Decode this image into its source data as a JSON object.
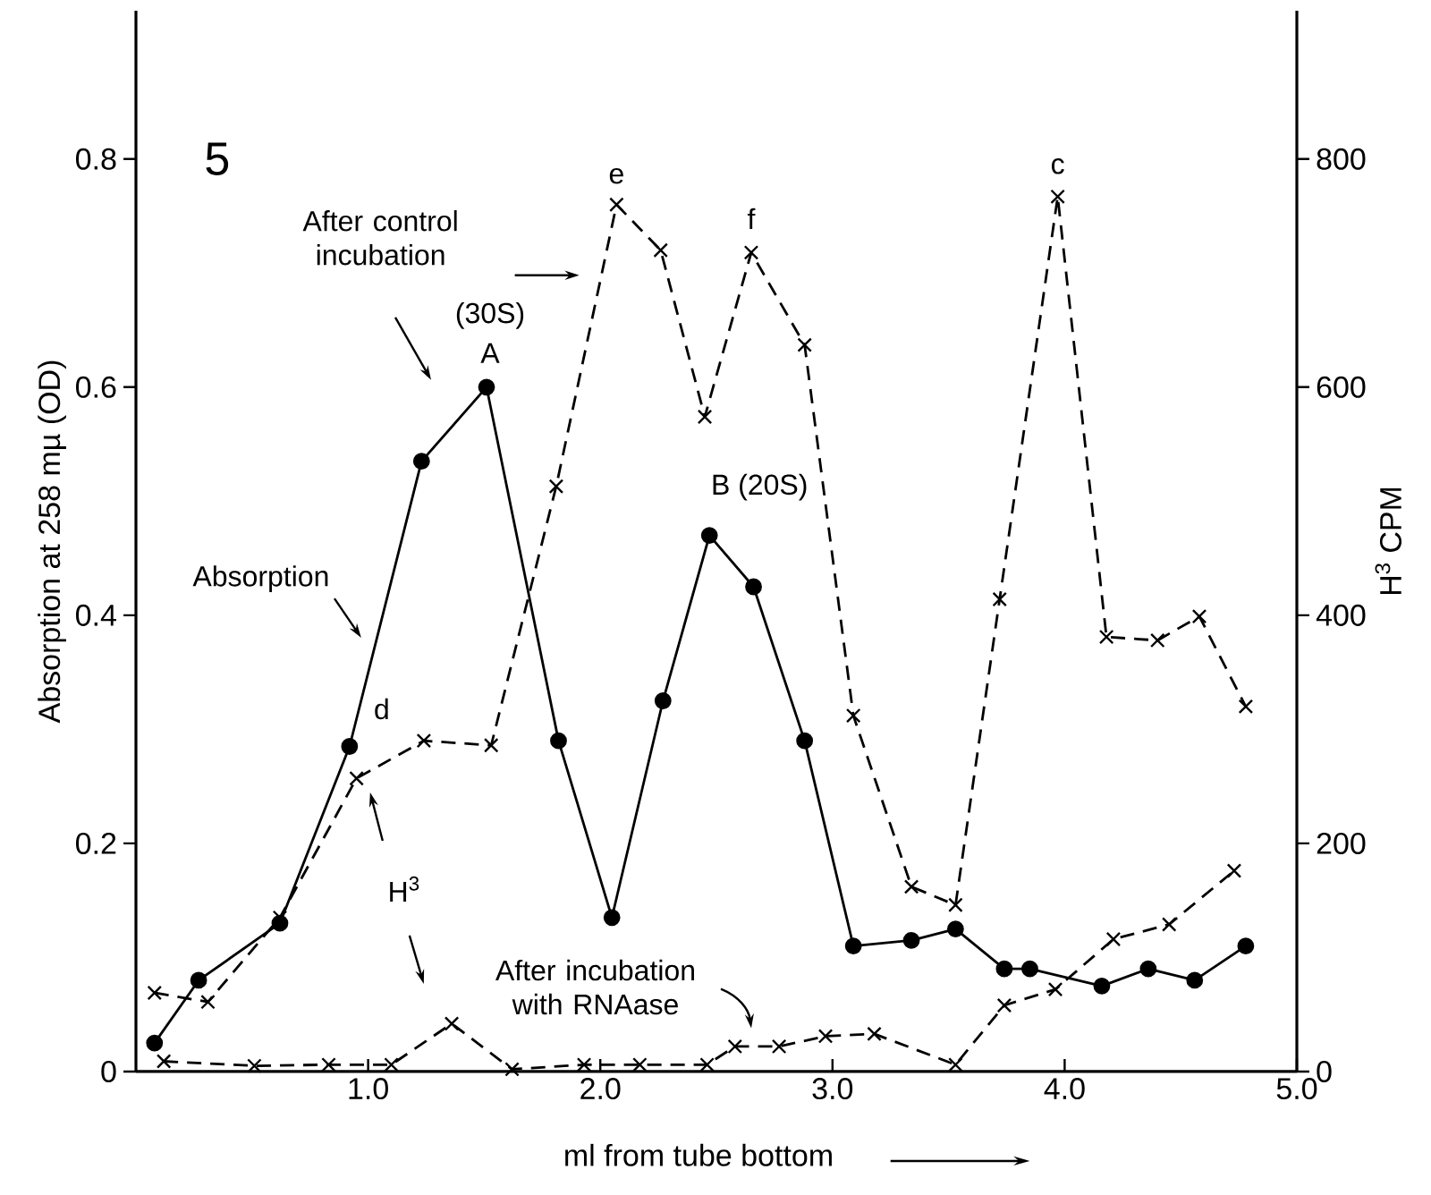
{
  "chart_data": {
    "type": "line",
    "xlabel": "ml from tube bottom",
    "ylabel": "Absorption at 258 mµ (OD)",
    "y2label": "H$^{3}$ CPM",
    "xlim": [
      0,
      5
    ],
    "ylim": [
      0,
      0.93
    ],
    "y2lim": [
      0,
      930
    ],
    "xticks": [
      {
        "value": 1,
        "label": "1.0"
      },
      {
        "value": 2,
        "label": "2.0"
      },
      {
        "value": 3,
        "label": "3.0"
      },
      {
        "value": 4,
        "label": "4.0"
      },
      {
        "value": 5,
        "label": "5.0"
      }
    ],
    "yticks": [
      0,
      0.2,
      0.4,
      0.6,
      0.8
    ],
    "y2ticks": [
      0,
      200,
      400,
      600,
      800
    ],
    "series": [
      {
        "color": "#000000",
        "marker": "circle",
        "line_style": "solid",
        "x": [
          0.08,
          0.27,
          0.62,
          0.92,
          1.23,
          1.51,
          1.82,
          2.05,
          2.27,
          2.47,
          2.66,
          2.88,
          3.09,
          3.34,
          3.53,
          3.74,
          3.85,
          4.16,
          4.36,
          4.56,
          4.78
        ],
        "values": [
          0.025,
          0.08,
          0.13,
          0.285,
          0.535,
          0.6,
          0.29,
          0.135,
          0.325,
          0.47,
          0.425,
          0.29,
          0.11,
          0.115,
          0.125,
          0.09,
          0.09,
          0.075,
          0.09,
          0.08,
          0.11
        ]
      },
      {
        "color": "#000000",
        "marker": "cross",
        "line_style": "dashed",
        "axis": "y2",
        "x": [
          0.08,
          0.31,
          0.62,
          0.95,
          1.24,
          1.53,
          1.81,
          2.07,
          2.26,
          2.45,
          2.65,
          2.88,
          3.09,
          3.34,
          3.53,
          3.72,
          3.97,
          4.18,
          4.4,
          4.58,
          4.78
        ],
        "values": [
          69,
          61,
          135,
          257,
          290,
          286,
          513,
          760,
          720,
          574,
          718,
          637,
          312,
          162,
          146,
          414,
          767,
          381,
          378,
          399,
          320
        ]
      },
      {
        "color": "#000000",
        "marker": "cross",
        "line_style": "dashed",
        "axis": "y2",
        "x": [
          0.12,
          0.51,
          0.83,
          1.1,
          1.36,
          1.62,
          1.93,
          2.17,
          2.46,
          2.58,
          2.77,
          2.97,
          3.18,
          3.53,
          3.74,
          3.96,
          4.21,
          4.45,
          4.73
        ],
        "values": [
          9,
          5,
          6,
          6,
          42,
          2,
          6,
          6,
          6,
          22,
          22,
          31,
          33,
          6,
          58,
          72,
          116,
          129,
          176
        ]
      }
    ],
    "annotations": [
      "5",
      "After control incubation",
      {
        "text": "(30S)",
        "x": 1.51,
        "y": 0.6
      },
      {
        "text": "A",
        "x": 1.51,
        "y": 0.6
      },
      {
        "text": "e",
        "x": 2.07,
        "y": 0.76
      },
      {
        "text": "f",
        "x": 2.65,
        "y": 0.718
      },
      {
        "text": "c",
        "x": 3.97,
        "y": 0.767
      },
      {
        "text": "B (20S)",
        "x": 2.47,
        "y": 0.47
      },
      "Absorption",
      {
        "text": "d",
        "x": 0.92,
        "y": 0.285
      },
      "H$^{3}$",
      "After incubation with RNAase"
    ]
  }
}
